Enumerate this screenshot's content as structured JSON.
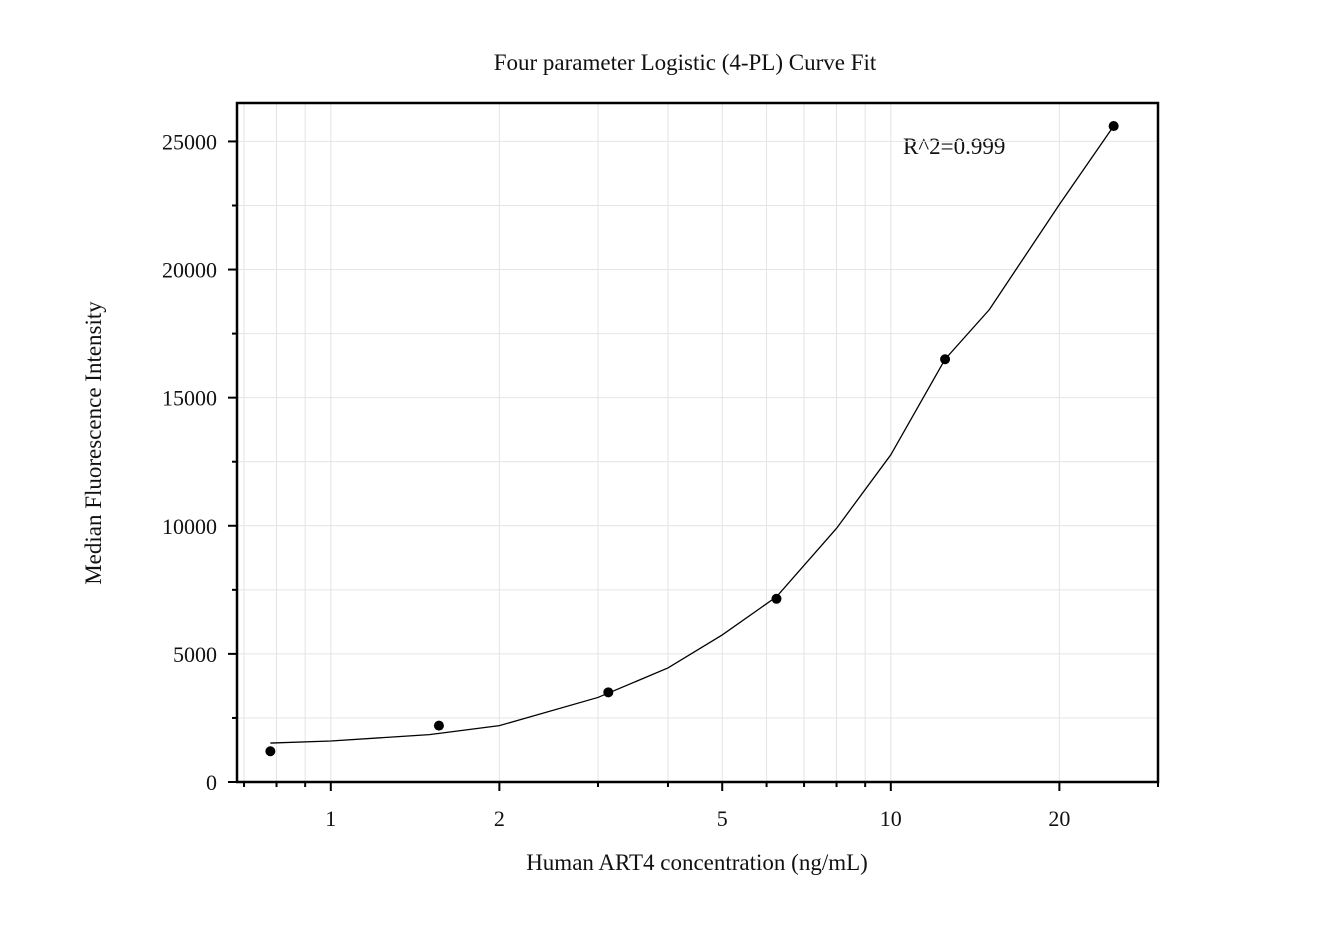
{
  "chart_data": {
    "type": "scatter",
    "title": "Four parameter Logistic (4-PL) Curve Fit",
    "x_label": "Human ART4 concentration (ng/mL)",
    "y_label": "Median Fluorescence Intensity",
    "annotation": "R^2=0.999",
    "x_scale": "log",
    "grid": true,
    "xlim": [
      0.68,
      30
    ],
    "ylim": [
      0,
      26500
    ],
    "xticks": [
      1,
      2,
      5,
      10,
      20
    ],
    "xminorticks": [
      0.7,
      0.8,
      0.9,
      3,
      4,
      6,
      7,
      8,
      9,
      30
    ],
    "yticks": [
      0,
      5000,
      10000,
      15000,
      20000,
      25000
    ],
    "yminorticks": [
      2500,
      7500,
      12500,
      17500,
      22500
    ],
    "series": [
      {
        "type": "scatter",
        "color": "#000000",
        "x": [
          0.78,
          1.56,
          3.13,
          6.25,
          12.5,
          25
        ],
        "values": [
          1200,
          2200,
          3500,
          7150,
          16500,
          25600
        ]
      },
      {
        "type": "line",
        "color": "#000000",
        "x": [
          0.78,
          1,
          1.5,
          2,
          3,
          4,
          5,
          6.25,
          8,
          10,
          12.5,
          15,
          20,
          25
        ],
        "values": [
          1520,
          1600,
          1850,
          2200,
          3300,
          4450,
          5740,
          7230,
          9900,
          12770,
          16500,
          18440,
          22540,
          25600
        ]
      }
    ]
  }
}
